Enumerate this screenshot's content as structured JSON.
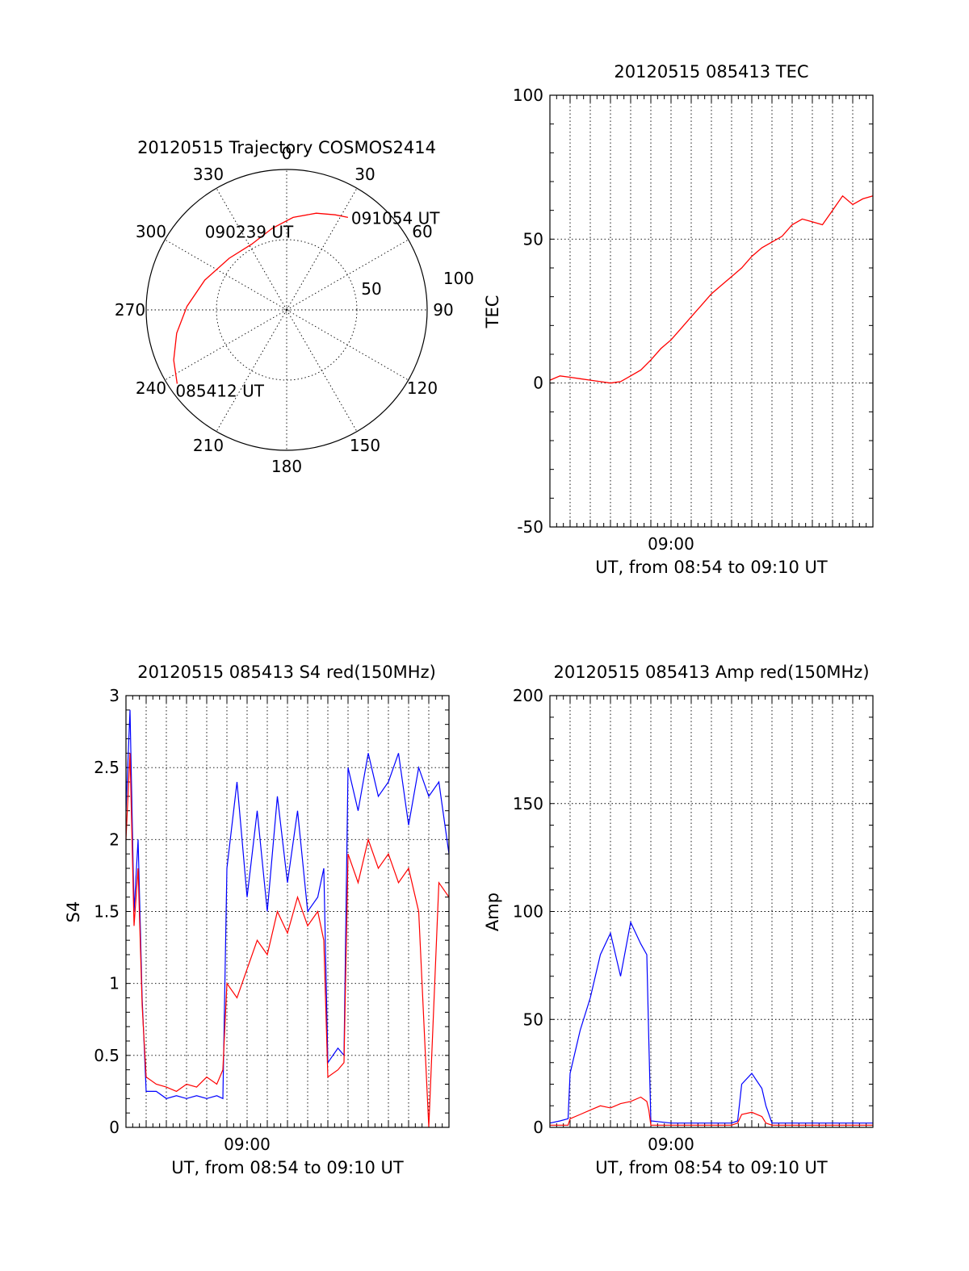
{
  "chart_data": [
    {
      "id": "polar",
      "type": "scatter",
      "title": "20120515 Trajectory COSMOS2414",
      "azimuth_labels": [
        "0",
        "30",
        "60",
        "90",
        "120",
        "150",
        "180",
        "210",
        "240",
        "270",
        "300",
        "330"
      ],
      "ring_labels": [
        "50",
        "100"
      ],
      "radius_max": 100,
      "series": [
        {
          "color": "#ff0000",
          "points": [
            {
              "az": 236,
              "r": 94
            },
            {
              "az": 246,
              "r": 88
            },
            {
              "az": 258,
              "r": 80
            },
            {
              "az": 272,
              "r": 71
            },
            {
              "az": 290,
              "r": 62
            },
            {
              "az": 312,
              "r": 55
            },
            {
              "az": 332,
              "r": 53
            },
            {
              "az": 350,
              "r": 59
            },
            {
              "az": 4,
              "r": 66
            },
            {
              "az": 17,
              "r": 72
            },
            {
              "az": 27,
              "r": 76
            },
            {
              "az": 33.5,
              "r": 79
            }
          ]
        }
      ],
      "annotations": [
        {
          "text": "091054 UT",
          "az": 33.5,
          "r": 79
        },
        {
          "text": "090239 UT",
          "az": 332,
          "r": 53
        },
        {
          "text": "085412 UT",
          "az": 236,
          "r": 94
        }
      ]
    },
    {
      "id": "tec",
      "type": "line",
      "title": "20120515 085413 TEC",
      "ylabel": "TEC",
      "xlabel": "UT, from 08:54 to 09:10 UT",
      "xlim": [
        0,
        16
      ],
      "ylim": [
        -50,
        100
      ],
      "yticks": [
        -50,
        0,
        50,
        100
      ],
      "xticks": [
        {
          "value": 6,
          "label": "09:00"
        }
      ],
      "series": [
        {
          "color": "#ff0000",
          "x": [
            0,
            0.5,
            1,
            1.5,
            2,
            2.5,
            3,
            3.5,
            4,
            4.5,
            5,
            5.5,
            6,
            6.5,
            7,
            7.5,
            8,
            8.5,
            9,
            9.5,
            10,
            10.5,
            11,
            11.5,
            12,
            12.5,
            13,
            13.5,
            14,
            14.5,
            15,
            15.5,
            16
          ],
          "y": [
            1,
            2.5,
            2,
            1.5,
            1,
            0.5,
            0,
            0.5,
            2.5,
            4.5,
            8,
            12,
            15,
            19,
            23,
            27,
            31,
            34,
            37,
            40,
            44,
            47,
            49,
            51,
            55,
            57,
            56,
            55,
            60,
            65,
            62,
            64,
            65
          ]
        }
      ]
    },
    {
      "id": "s4",
      "type": "line",
      "title": "20120515 085413 S4 red(150MHz)",
      "ylabel": "S4",
      "xlabel": "UT, from 08:54 to 09:10 UT",
      "xlim": [
        0,
        16
      ],
      "ylim": [
        0,
        3
      ],
      "yticks": [
        0,
        0.5,
        1,
        1.5,
        2,
        2.5,
        3
      ],
      "xticks": [
        {
          "value": 6,
          "label": "09:00"
        }
      ],
      "series": [
        {
          "color": "#0000ff",
          "x": [
            0,
            0.2,
            0.4,
            0.6,
            0.8,
            1.0,
            1.5,
            2.0,
            2.5,
            3.0,
            3.5,
            4.0,
            4.5,
            4.8,
            5.0,
            5.5,
            6.0,
            6.5,
            7.0,
            7.5,
            8.0,
            8.5,
            9.0,
            9.5,
            9.8,
            10.0,
            10.5,
            10.8,
            11.0,
            11.5,
            12.0,
            12.5,
            13.0,
            13.5,
            14.0,
            14.5,
            15.0,
            15.5,
            16
          ],
          "y": [
            2.2,
            2.9,
            1.5,
            2.0,
            0.9,
            0.25,
            0.25,
            0.2,
            0.22,
            0.2,
            0.22,
            0.2,
            0.22,
            0.2,
            1.8,
            2.4,
            1.6,
            2.2,
            1.5,
            2.3,
            1.7,
            2.2,
            1.5,
            1.6,
            1.8,
            0.45,
            0.55,
            0.5,
            2.5,
            2.2,
            2.6,
            2.3,
            2.4,
            2.6,
            2.1,
            2.5,
            2.3,
            2.4,
            1.9
          ]
        },
        {
          "color": "#ff0000",
          "x": [
            0,
            0.2,
            0.4,
            0.6,
            0.8,
            1.0,
            1.5,
            2.0,
            2.5,
            3.0,
            3.5,
            4.0,
            4.5,
            4.8,
            5.0,
            5.5,
            6.0,
            6.5,
            7.0,
            7.5,
            8.0,
            8.5,
            9.0,
            9.5,
            9.8,
            10.0,
            10.5,
            10.8,
            11.0,
            11.5,
            12.0,
            12.5,
            13.0,
            13.5,
            14.0,
            14.5,
            15.0,
            15.5,
            16
          ],
          "y": [
            2.0,
            2.6,
            1.4,
            1.8,
            0.85,
            0.35,
            0.3,
            0.28,
            0.25,
            0.3,
            0.28,
            0.35,
            0.3,
            0.4,
            1.0,
            0.9,
            1.1,
            1.3,
            1.2,
            1.5,
            1.35,
            1.6,
            1.4,
            1.5,
            1.3,
            0.35,
            0.4,
            0.45,
            1.9,
            1.7,
            2.0,
            1.8,
            1.9,
            1.7,
            1.8,
            1.5,
            0.0,
            1.7,
            1.6
          ]
        }
      ]
    },
    {
      "id": "amp",
      "type": "line",
      "title": "20120515 085413 Amp red(150MHz)",
      "ylabel": "Amp",
      "xlabel": "UT, from 08:54 to 09:10 UT",
      "xlim": [
        0,
        16
      ],
      "ylim": [
        0,
        200
      ],
      "yticks": [
        0,
        50,
        100,
        150,
        200
      ],
      "xticks": [
        {
          "value": 6,
          "label": "09:00"
        }
      ],
      "series": [
        {
          "color": "#0000ff",
          "x": [
            0,
            0.5,
            0.9,
            1.0,
            1.5,
            2.0,
            2.5,
            3.0,
            3.5,
            4.0,
            4.5,
            4.8,
            4.9,
            5.0,
            6.0,
            7.0,
            8.0,
            9.0,
            9.3,
            9.5,
            10.0,
            10.5,
            10.7,
            11.0,
            12.0,
            13.0,
            14.0,
            15.0,
            16
          ],
          "y": [
            2,
            3,
            4,
            25,
            45,
            60,
            80,
            90,
            70,
            95,
            85,
            80,
            40,
            3,
            2,
            2,
            2,
            2,
            3,
            20,
            25,
            18,
            10,
            2,
            2,
            2,
            2,
            2,
            2
          ]
        },
        {
          "color": "#ff0000",
          "x": [
            0,
            0.9,
            1.0,
            1.5,
            2.0,
            2.5,
            3.0,
            3.5,
            4.0,
            4.5,
            4.8,
            4.9,
            5.0,
            9.0,
            9.3,
            9.5,
            10.0,
            10.5,
            10.7,
            11.0,
            16
          ],
          "y": [
            1,
            1,
            4,
            6,
            8,
            10,
            9,
            11,
            12,
            14,
            12,
            8,
            1,
            1,
            2,
            6,
            7,
            5,
            2,
            1,
            1
          ]
        }
      ]
    }
  ]
}
